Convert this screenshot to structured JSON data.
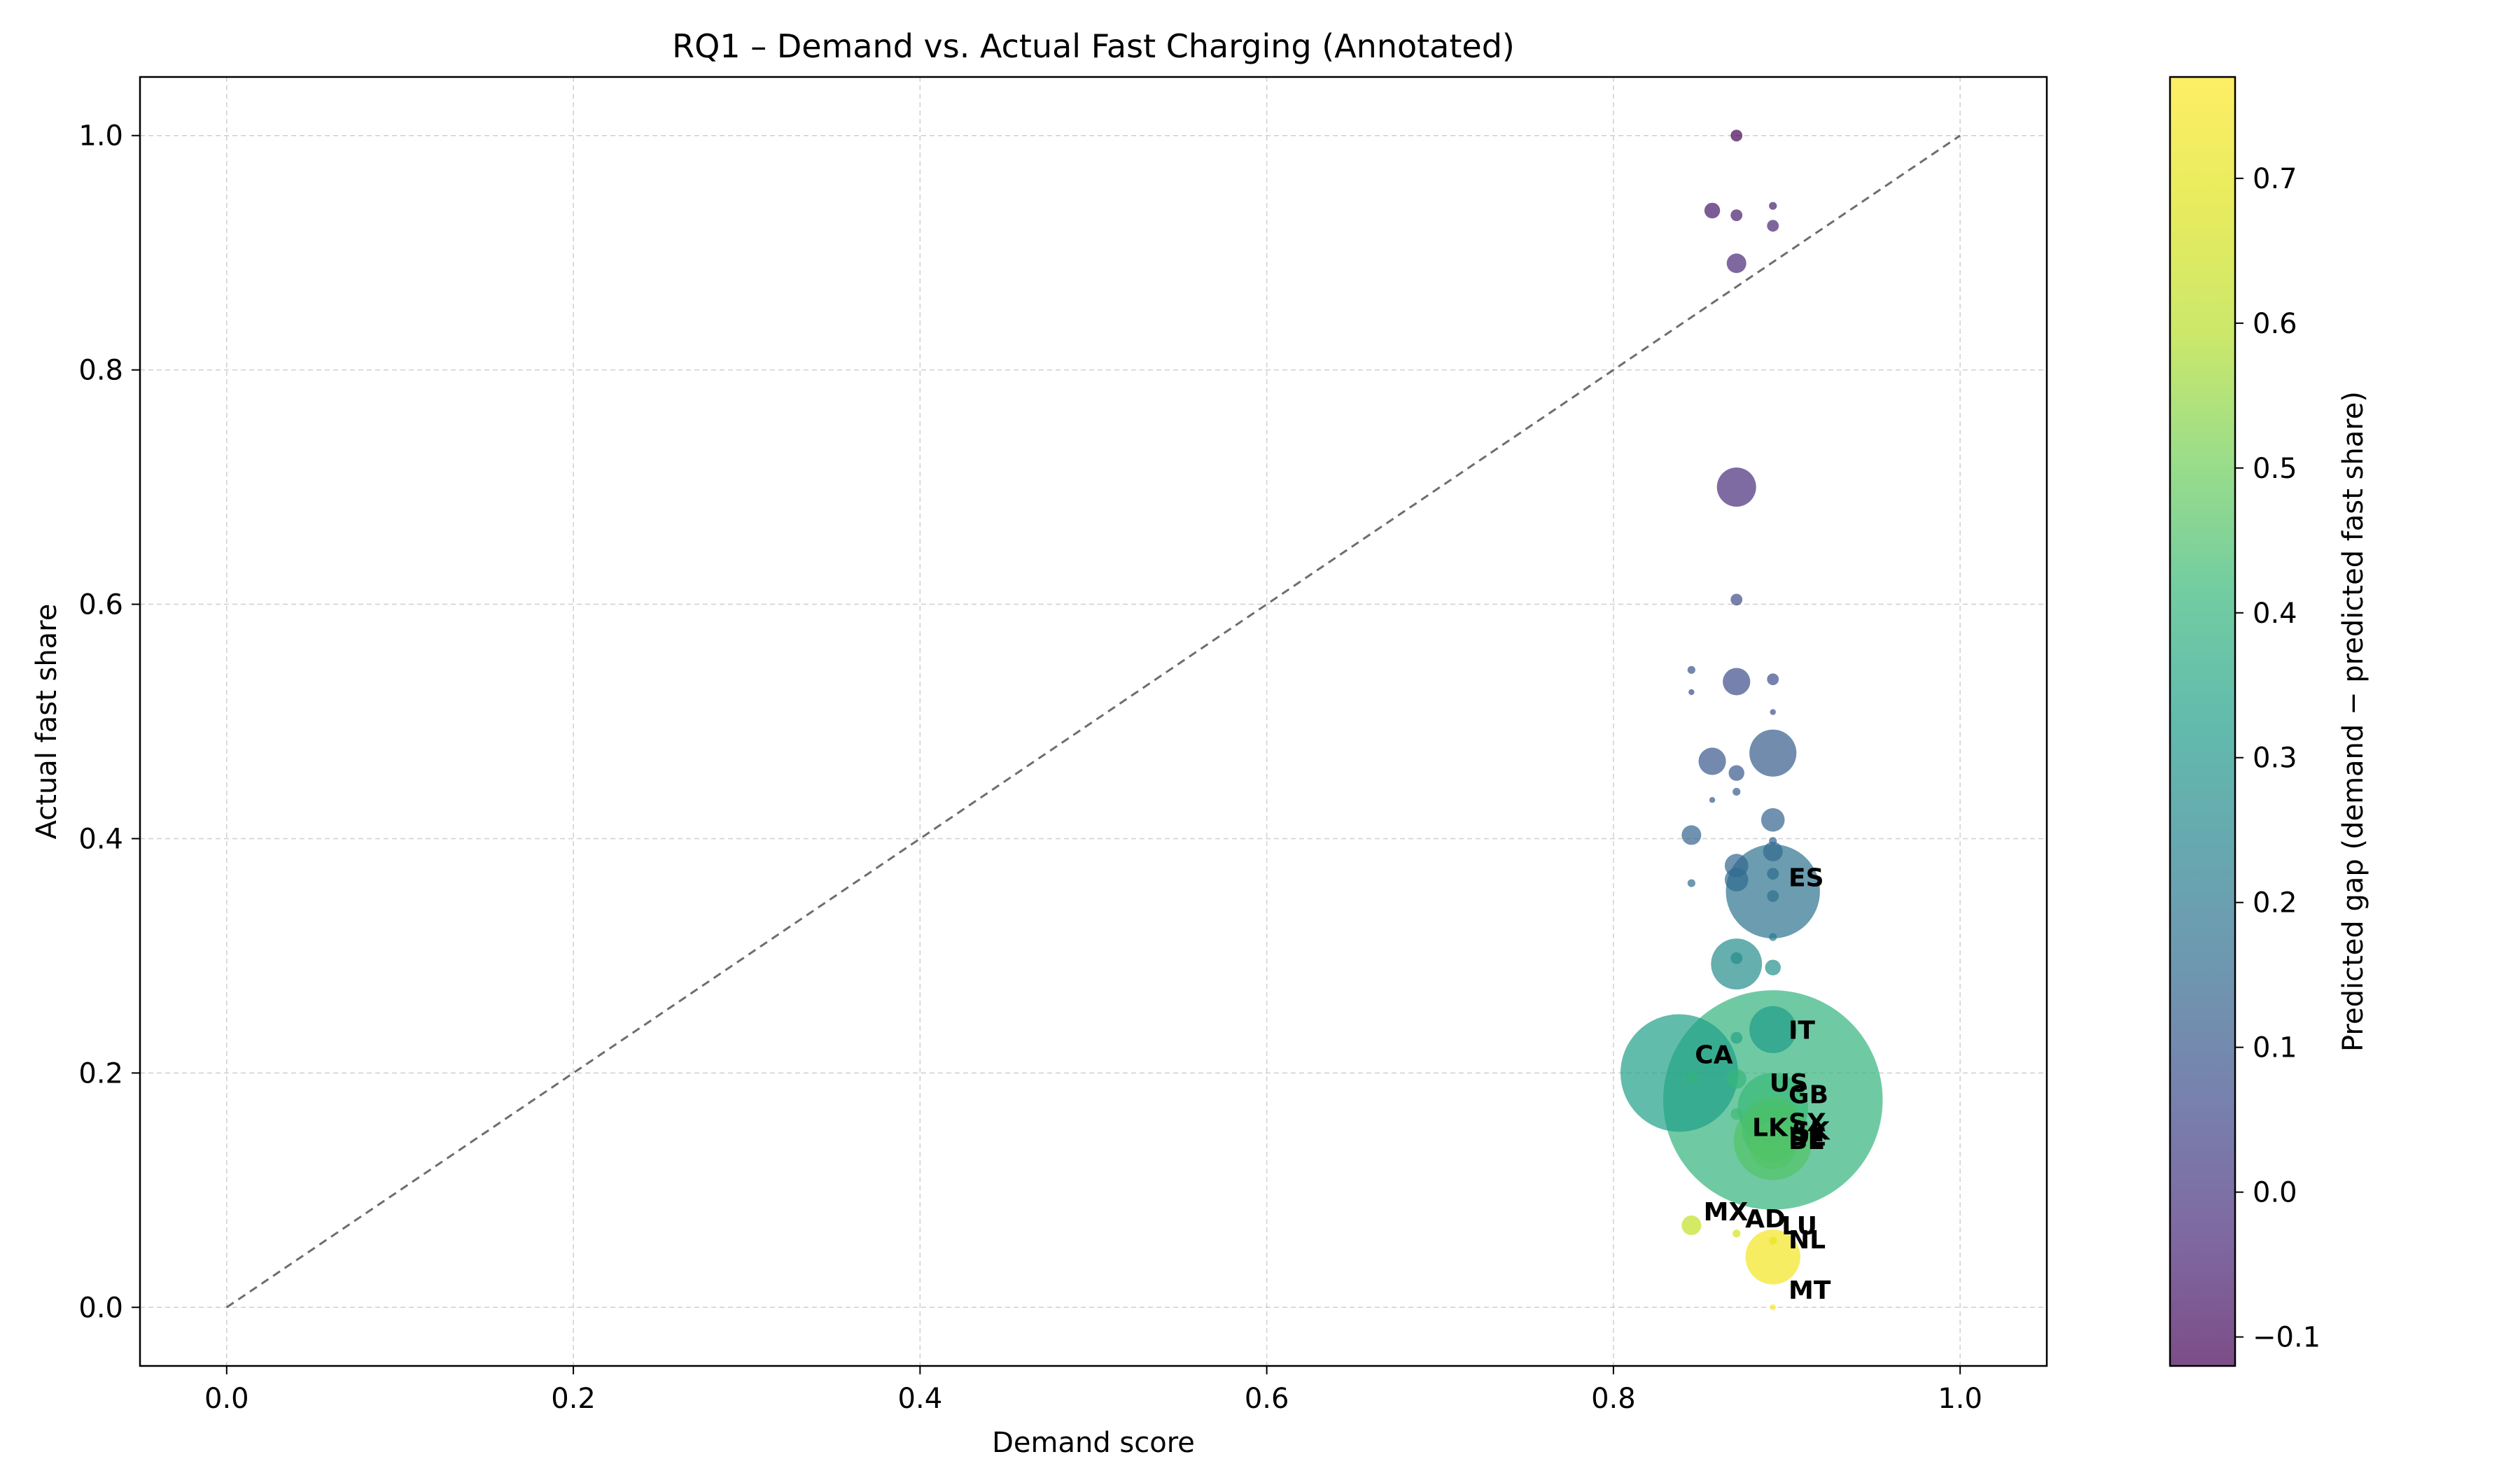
{
  "chart_data": {
    "type": "scatter",
    "title": "RQ1 – Demand vs. Actual Fast Charging (Annotated)",
    "xlabel": "Demand score",
    "ylabel": "Actual fast share",
    "xlim": [
      -0.05,
      1.05
    ],
    "ylim": [
      -0.05,
      1.05
    ],
    "xticks": [
      "0.0",
      "0.2",
      "0.4",
      "0.6",
      "0.8",
      "1.0"
    ],
    "yticks": [
      "0.0",
      "0.2",
      "0.4",
      "0.6",
      "0.8",
      "1.0"
    ],
    "grid": true,
    "reference_line": {
      "from": [
        0,
        0
      ],
      "to": [
        1,
        1
      ],
      "style": "dashed"
    },
    "colorbar": {
      "label": "Predicted gap (demand − predicted fast share)",
      "range": [
        -0.12,
        0.77
      ],
      "ticks": [
        "−0.1",
        "0.0",
        "0.1",
        "0.2",
        "0.3",
        "0.4",
        "0.5",
        "0.6",
        "0.7"
      ],
      "colormap": "viridis"
    },
    "points": [
      {
        "x": 0.871,
        "y": 1.0,
        "gap": -0.12,
        "size": 3
      },
      {
        "x": 0.857,
        "y": 0.936,
        "gap": -0.07,
        "size": 4
      },
      {
        "x": 0.871,
        "y": 0.932,
        "gap": -0.06,
        "size": 3
      },
      {
        "x": 0.892,
        "y": 0.94,
        "gap": -0.05,
        "size": 2
      },
      {
        "x": 0.892,
        "y": 0.923,
        "gap": -0.04,
        "size": 3
      },
      {
        "x": 0.871,
        "y": 0.891,
        "gap": -0.03,
        "size": 5
      },
      {
        "x": 0.871,
        "y": 0.7,
        "gap": -0.02,
        "size": 10
      },
      {
        "x": 0.871,
        "y": 0.604,
        "gap": 0.06,
        "size": 3
      },
      {
        "x": 0.845,
        "y": 0.544,
        "gap": 0.08,
        "size": 2
      },
      {
        "x": 0.845,
        "y": 0.525,
        "gap": 0.07,
        "size": 1.5
      },
      {
        "x": 0.871,
        "y": 0.534,
        "gap": 0.07,
        "size": 7
      },
      {
        "x": 0.892,
        "y": 0.536,
        "gap": 0.07,
        "size": 3
      },
      {
        "x": 0.892,
        "y": 0.508,
        "gap": 0.08,
        "size": 1.5
      },
      {
        "x": 0.857,
        "y": 0.466,
        "gap": 0.1,
        "size": 7
      },
      {
        "x": 0.871,
        "y": 0.456,
        "gap": 0.1,
        "size": 4
      },
      {
        "x": 0.892,
        "y": 0.473,
        "gap": 0.11,
        "size": 12
      },
      {
        "x": 0.871,
        "y": 0.44,
        "gap": 0.11,
        "size": 2
      },
      {
        "x": 0.857,
        "y": 0.433,
        "gap": 0.11,
        "size": 1.5
      },
      {
        "x": 0.845,
        "y": 0.403,
        "gap": 0.13,
        "size": 5
      },
      {
        "x": 0.892,
        "y": 0.416,
        "gap": 0.13,
        "size": 6
      },
      {
        "x": 0.892,
        "y": 0.398,
        "gap": 0.14,
        "size": 2
      },
      {
        "x": 0.892,
        "y": 0.389,
        "gap": 0.15,
        "size": 5
      },
      {
        "x": 0.871,
        "y": 0.377,
        "gap": 0.14,
        "size": 6
      },
      {
        "x": 0.871,
        "y": 0.365,
        "gap": 0.16,
        "size": 6
      },
      {
        "x": 0.892,
        "y": 0.37,
        "gap": 0.16,
        "size": 3
      },
      {
        "x": 0.845,
        "y": 0.362,
        "gap": 0.16,
        "size": 2
      },
      {
        "x": 0.892,
        "y": 0.355,
        "gap": 0.18,
        "size": 24,
        "label": "ES"
      },
      {
        "x": 0.892,
        "y": 0.351,
        "gap": 0.18,
        "size": 3
      },
      {
        "x": 0.892,
        "y": 0.316,
        "gap": 0.22,
        "size": 2
      },
      {
        "x": 0.871,
        "y": 0.293,
        "gap": 0.27,
        "size": 13
      },
      {
        "x": 0.871,
        "y": 0.298,
        "gap": 0.27,
        "size": 3
      },
      {
        "x": 0.892,
        "y": 0.29,
        "gap": 0.28,
        "size": 4
      },
      {
        "x": 0.892,
        "y": 0.237,
        "gap": 0.32,
        "size": 12,
        "label": "IT"
      },
      {
        "x": 0.871,
        "y": 0.23,
        "gap": 0.34,
        "size": 3
      },
      {
        "x": 0.838,
        "y": 0.2,
        "gap": 0.33,
        "size": 30,
        "label": "CA"
      },
      {
        "x": 0.892,
        "y": 0.177,
        "gap": 0.4,
        "size": 56,
        "label": "US"
      },
      {
        "x": 0.845,
        "y": 0.196,
        "gap": 0.4,
        "size": 3
      },
      {
        "x": 0.871,
        "y": 0.195,
        "gap": 0.41,
        "size": 5
      },
      {
        "x": 0.892,
        "y": 0.17,
        "gap": 0.42,
        "size": 18,
        "label": "GB"
      },
      {
        "x": 0.871,
        "y": 0.165,
        "gap": 0.43,
        "size": 3
      },
      {
        "x": 0.892,
        "y": 0.153,
        "gap": 0.45,
        "size": 16,
        "label": "SK"
      },
      {
        "x": 0.892,
        "y": 0.148,
        "gap": 0.45,
        "size": 14,
        "label": "LK"
      },
      {
        "x": 0.892,
        "y": 0.142,
        "gap": 0.46,
        "size": 20,
        "label": "DE"
      },
      {
        "x": 0.892,
        "y": 0.138,
        "gap": 0.46,
        "size": 12,
        "label": "BE"
      },
      {
        "x": 0.845,
        "y": 0.07,
        "gap": 0.62,
        "size": 5,
        "label": "MX"
      },
      {
        "x": 0.871,
        "y": 0.063,
        "gap": 0.66,
        "size": 2,
        "label": "AD"
      },
      {
        "x": 0.892,
        "y": 0.057,
        "gap": 0.72,
        "size": 2,
        "label": "LU"
      },
      {
        "x": 0.892,
        "y": 0.043,
        "gap": 0.74,
        "size": 14,
        "label": "NL"
      },
      {
        "x": 0.892,
        "y": 0.0,
        "gap": 0.77,
        "size": 1.5,
        "label": "MT"
      }
    ],
    "annotations": [
      {
        "text": "ES",
        "x": 0.901,
        "y": 0.367
      },
      {
        "text": "IT",
        "x": 0.901,
        "y": 0.237
      },
      {
        "text": "CA",
        "x": 0.847,
        "y": 0.216
      },
      {
        "text": "US",
        "x": 0.89,
        "y": 0.192
      },
      {
        "text": "GB",
        "x": 0.901,
        "y": 0.182
      },
      {
        "text": "SX",
        "x": 0.901,
        "y": 0.158
      },
      {
        "text": "LK",
        "x": 0.88,
        "y": 0.154
      },
      {
        "text": "SK",
        "x": 0.903,
        "y": 0.151
      },
      {
        "text": "DE",
        "x": 0.901,
        "y": 0.146
      },
      {
        "text": "BE",
        "x": 0.901,
        "y": 0.143
      },
      {
        "text": "MX",
        "x": 0.852,
        "y": 0.082
      },
      {
        "text": "AD",
        "x": 0.876,
        "y": 0.076
      },
      {
        "text": "LU",
        "x": 0.897,
        "y": 0.07
      },
      {
        "text": "NL",
        "x": 0.901,
        "y": 0.058
      },
      {
        "text": "MT",
        "x": 0.901,
        "y": 0.015
      }
    ]
  }
}
